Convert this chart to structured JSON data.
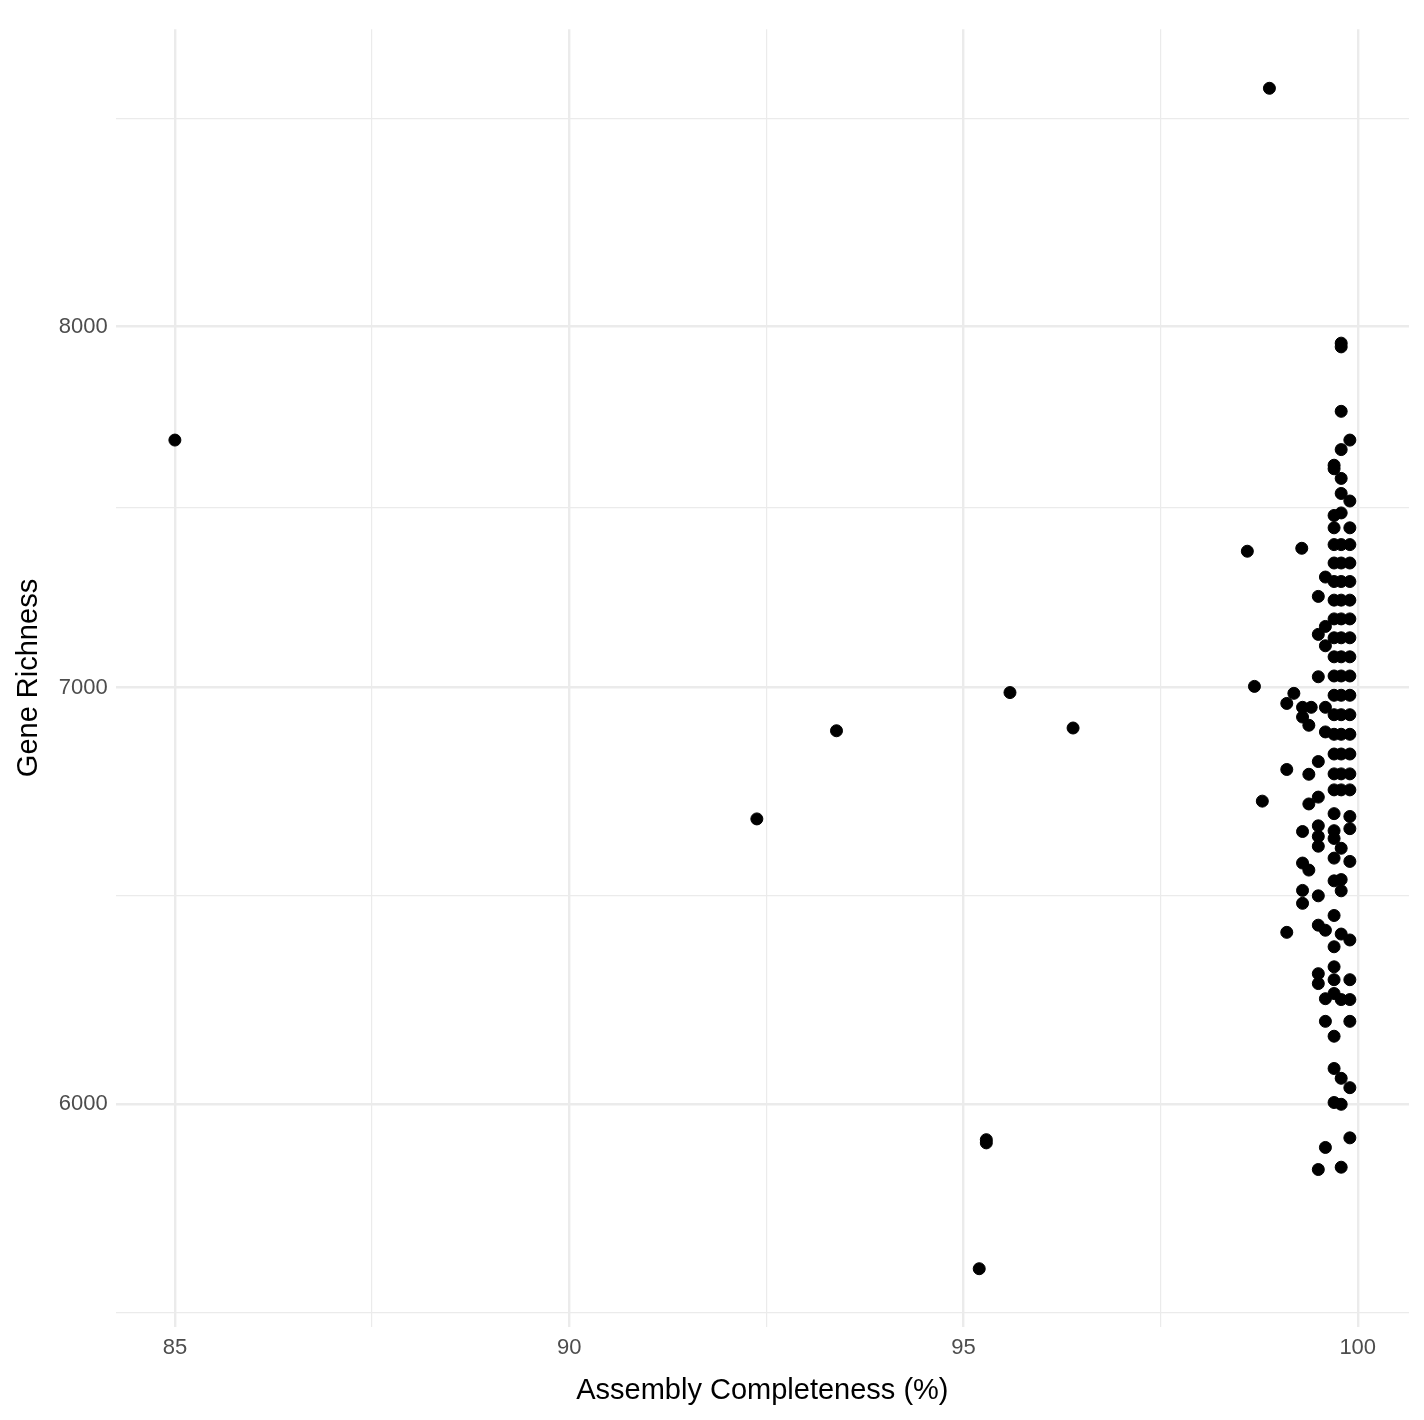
{
  "chart_data": {
    "type": "scatter",
    "xlabel": "Assembly Completeness (%)",
    "ylabel": "Gene Richness",
    "log": "y",
    "grid": true,
    "marker": "circle",
    "legend": false,
    "color": "#000000",
    "xlim": [
      84.25,
      100.65
    ],
    "ylim": [
      5526,
      8930
    ],
    "xticks": [
      85,
      {
        "value": 87.5,
        "label": null
      },
      90,
      {
        "value": 92.5,
        "label": null
      },
      95,
      {
        "value": 97.5,
        "label": null
      },
      100
    ],
    "yticks": [
      {
        "value": 5556,
        "label": null
      },
      6000,
      {
        "value": 6481,
        "label": null
      },
      7000,
      {
        "value": 7483,
        "label": null
      },
      8000,
      {
        "value": 8640,
        "label": null
      }
    ],
    "x": [
      85,
      98.88,
      92.38,
      93.39,
      95.59,
      96.39,
      95.29,
      95.29,
      95.2,
      98.6,
      99.29,
      98.69,
      99.79,
      99.79,
      99.79,
      99.9,
      99.79,
      99.7,
      99.7,
      99.79,
      99.79,
      99.9,
      99.7,
      99.79,
      99.7,
      99.9,
      99.5,
      99.59,
      99.5,
      99.59,
      99.59,
      99.5,
      99.19,
      99.1,
      99.3,
      99.41,
      99.3,
      99.38,
      99.59,
      99.59,
      99.5,
      99.38,
      99.1,
      98.79,
      99.38,
      99.5,
      99.7,
      99.9,
      99.3,
      99.5,
      99.5,
      99.7,
      99.9,
      99.5,
      99.7,
      99.7,
      99.79,
      99.9,
      99.3,
      99.38,
      99.7,
      99.79,
      99.79,
      99.3,
      99.3,
      99.5,
      99.1,
      99.5,
      99.59,
      99.7,
      99.79,
      99.9,
      99.7,
      99.7,
      99.5,
      99.5,
      99.7,
      99.9,
      99.59,
      99.79,
      99.7,
      99.9,
      99.59,
      99.9,
      99.7,
      99.7,
      99.79,
      99.9,
      99.7,
      99.79,
      99.9,
      99.59,
      99.5,
      99.79,
      99.7,
      99.7,
      99.7,
      99.7,
      99.7,
      99.7,
      99.7,
      99.7,
      99.7,
      99.7,
      99.7,
      99.7,
      99.7,
      99.7,
      99.79,
      99.79,
      99.79,
      99.79,
      99.79,
      99.79,
      99.79,
      99.79,
      99.79,
      99.79,
      99.79,
      99.79,
      99.79,
      99.79,
      99.9,
      99.9,
      99.9,
      99.9,
      99.9,
      99.9,
      99.9,
      99.9,
      99.9,
      99.9,
      99.9,
      99.9,
      99.9,
      99.9
    ],
    "values": [
      7671,
      8737,
      6668,
      6889,
      6987,
      6896,
      5922,
      5915,
      5646,
      7362,
      7370,
      7003,
      7951,
      7940,
      7753,
      7671,
      7644,
      7600,
      7590,
      7563,
      7521,
      7500,
      7460,
      7467,
      7426,
      7426,
      7240,
      7292,
      7139,
      7160,
      7109,
      7028,
      6985,
      6959,
      6949,
      6949,
      6924,
      6903,
      6949,
      6886,
      6811,
      6779,
      6791,
      6712,
      6705,
      6722,
      6681,
      6674,
      6637,
      6651,
      6625,
      6639,
      6644,
      6601,
      6620,
      6572,
      6596,
      6564,
      6560,
      6543,
      6517,
      6520,
      6493,
      6494,
      6463,
      6481,
      6394,
      6411,
      6399,
      6434,
      6390,
      6376,
      6360,
      6313,
      6297,
      6274,
      6283,
      6283,
      6239,
      6237,
      6251,
      6237,
      6187,
      6187,
      6153,
      6080,
      6058,
      6037,
      6004,
      6000,
      5926,
      5905,
      5857,
      5862,
      7380,
      7330,
      7280,
      7230,
      7180,
      7130,
      7080,
      7030,
      6980,
      6930,
      6880,
      6830,
      6780,
      6740,
      7380,
      7330,
      7280,
      7230,
      7180,
      7130,
      7080,
      7030,
      6980,
      6930,
      6880,
      6830,
      6780,
      6740,
      7380,
      7330,
      7280,
      7230,
      7180,
      7130,
      7080,
      7030,
      6980,
      6930,
      6880,
      6830,
      6780,
      6740
    ]
  }
}
